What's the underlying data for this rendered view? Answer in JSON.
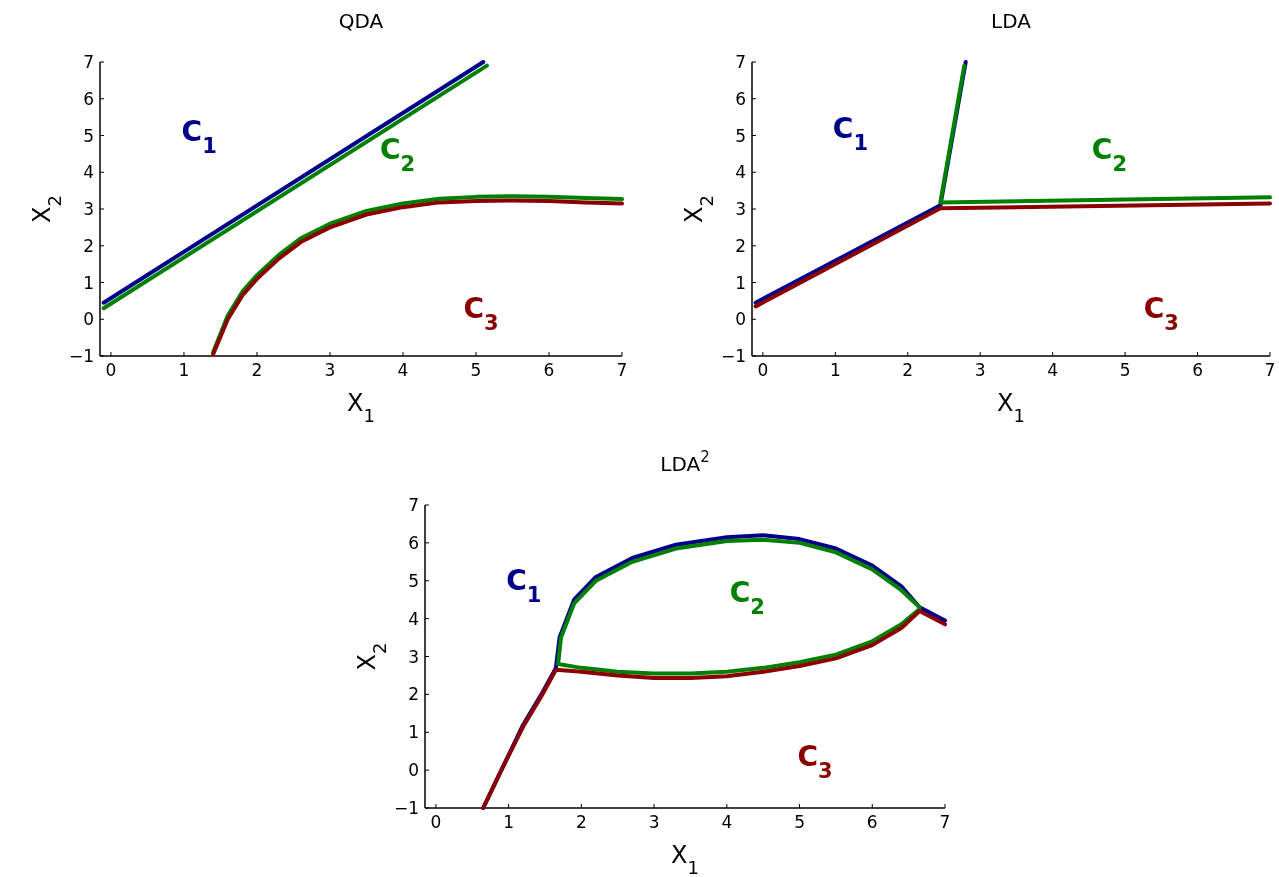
{
  "chart_data": [
    {
      "type": "line",
      "title": "QDA",
      "xlabel": "X$_{1}$",
      "ylabel": "X$_{2}$",
      "xlim": [
        -0.15,
        7
      ],
      "ylim": [
        -1,
        7
      ],
      "xticks": [
        0,
        1,
        2,
        3,
        4,
        5,
        6,
        7
      ],
      "yticks": [
        -1,
        0,
        1,
        2,
        3,
        4,
        5,
        6,
        7
      ],
      "grid": false,
      "line_style": "solid",
      "marker": "none",
      "series": [
        {
          "color": "#00008b",
          "x": [
            -0.1,
            5.1
          ],
          "values": [
            0.45,
            7
          ]
        },
        {
          "color": "#008000",
          "x": [
            -0.1,
            5.15
          ],
          "values": [
            0.3,
            6.9
          ]
        },
        {
          "color": "#008000",
          "x": [
            1.4,
            1.6,
            1.8,
            2,
            2.3,
            2.6,
            3,
            3.5,
            4,
            4.5,
            5,
            5.5,
            6,
            6.5,
            7
          ],
          "values": [
            -0.9,
            0.1,
            0.75,
            1.2,
            1.75,
            2.2,
            2.6,
            2.95,
            3.15,
            3.28,
            3.33,
            3.35,
            3.33,
            3.3,
            3.27
          ]
        },
        {
          "color": "#8b0000",
          "x": [
            1.4,
            1.6,
            1.8,
            2,
            2.3,
            2.6,
            3,
            3.5,
            4,
            4.5,
            5,
            5.5,
            6,
            6.5,
            7
          ],
          "values": [
            -0.95,
            0.0,
            0.65,
            1.1,
            1.65,
            2.1,
            2.5,
            2.85,
            3.05,
            3.18,
            3.22,
            3.23,
            3.22,
            3.18,
            3.15
          ]
        }
      ],
      "annotations": [
        "C$_{1}$",
        "C$_{2}$",
        "C$_{3}$"
      ]
    },
    {
      "type": "line",
      "title": "LDA",
      "xlabel": "X$_{1}$",
      "ylabel": "X$_{2}$",
      "xlim": [
        -0.15,
        7
      ],
      "ylim": [
        -1,
        7
      ],
      "xticks": [
        0,
        1,
        2,
        3,
        4,
        5,
        6,
        7
      ],
      "yticks": [
        -1,
        0,
        1,
        2,
        3,
        4,
        5,
        6,
        7
      ],
      "grid": false,
      "line_style": "solid",
      "marker": "none",
      "series": [
        {
          "color": "#00008b",
          "x": [
            -0.1,
            2.45,
            2.8
          ],
          "values": [
            0.45,
            3.1,
            7
          ]
        },
        {
          "color": "#008000",
          "x": [
            2.78,
            2.45,
            7
          ],
          "values": [
            6.9,
            3.18,
            3.32
          ]
        },
        {
          "color": "#8b0000",
          "x": [
            -0.1,
            2.45,
            7
          ],
          "values": [
            0.35,
            3.02,
            3.15
          ]
        }
      ],
      "annotations": [
        "C$_{1}$",
        "C$_{2}$",
        "C$_{3}$"
      ]
    },
    {
      "type": "line",
      "title": "LDA$^{2}$",
      "xlabel": "X$_{1}$",
      "ylabel": "X$_{2}$",
      "xlim": [
        -0.15,
        7
      ],
      "ylim": [
        -1,
        7
      ],
      "xticks": [
        0,
        1,
        2,
        3,
        4,
        5,
        6,
        7
      ],
      "yticks": [
        -1,
        0,
        1,
        2,
        3,
        4,
        5,
        6,
        7
      ],
      "grid": false,
      "line_style": "solid",
      "marker": "none",
      "series": [
        {
          "color": "#00008b",
          "x": [
            0.65,
            0.9,
            1.2,
            1.45,
            1.65,
            1.7,
            1.9,
            2.2,
            2.7,
            3.3,
            4,
            4.5,
            5,
            5.5,
            6,
            6.4,
            6.65,
            7
          ],
          "values": [
            -1,
            0,
            1.2,
            2,
            2.7,
            3.5,
            4.5,
            5.1,
            5.6,
            5.95,
            6.15,
            6.2,
            6.1,
            5.85,
            5.4,
            4.85,
            4.3,
            3.95
          ]
        },
        {
          "color": "#008000",
          "x": [
            6.65,
            6.4,
            6,
            5.5,
            5,
            4.5,
            4,
            3.3,
            2.7,
            2.2,
            1.9,
            1.72,
            1.68,
            2,
            2.5,
            3,
            3.5,
            4,
            4.5,
            5,
            5.5,
            6,
            6.4,
            6.65
          ],
          "values": [
            4.3,
            4.75,
            5.3,
            5.75,
            6.0,
            6.08,
            6.05,
            5.85,
            5.5,
            5.0,
            4.4,
            3.5,
            2.8,
            2.7,
            2.6,
            2.55,
            2.55,
            2.6,
            2.7,
            2.85,
            3.05,
            3.4,
            3.85,
            4.25
          ]
        },
        {
          "color": "#8b0000",
          "x": [
            0.65,
            0.9,
            1.2,
            1.45,
            1.65,
            2,
            2.5,
            3,
            3.5,
            4,
            4.5,
            5,
            5.5,
            6,
            6.4,
            6.65,
            7
          ],
          "values": [
            -1,
            0,
            1.15,
            1.95,
            2.65,
            2.6,
            2.5,
            2.43,
            2.43,
            2.48,
            2.6,
            2.75,
            2.95,
            3.3,
            3.75,
            4.2,
            3.85
          ]
        }
      ],
      "annotations": [
        "C$_{1}$",
        "C$_{2}$",
        "C$_{3}$"
      ]
    }
  ]
}
